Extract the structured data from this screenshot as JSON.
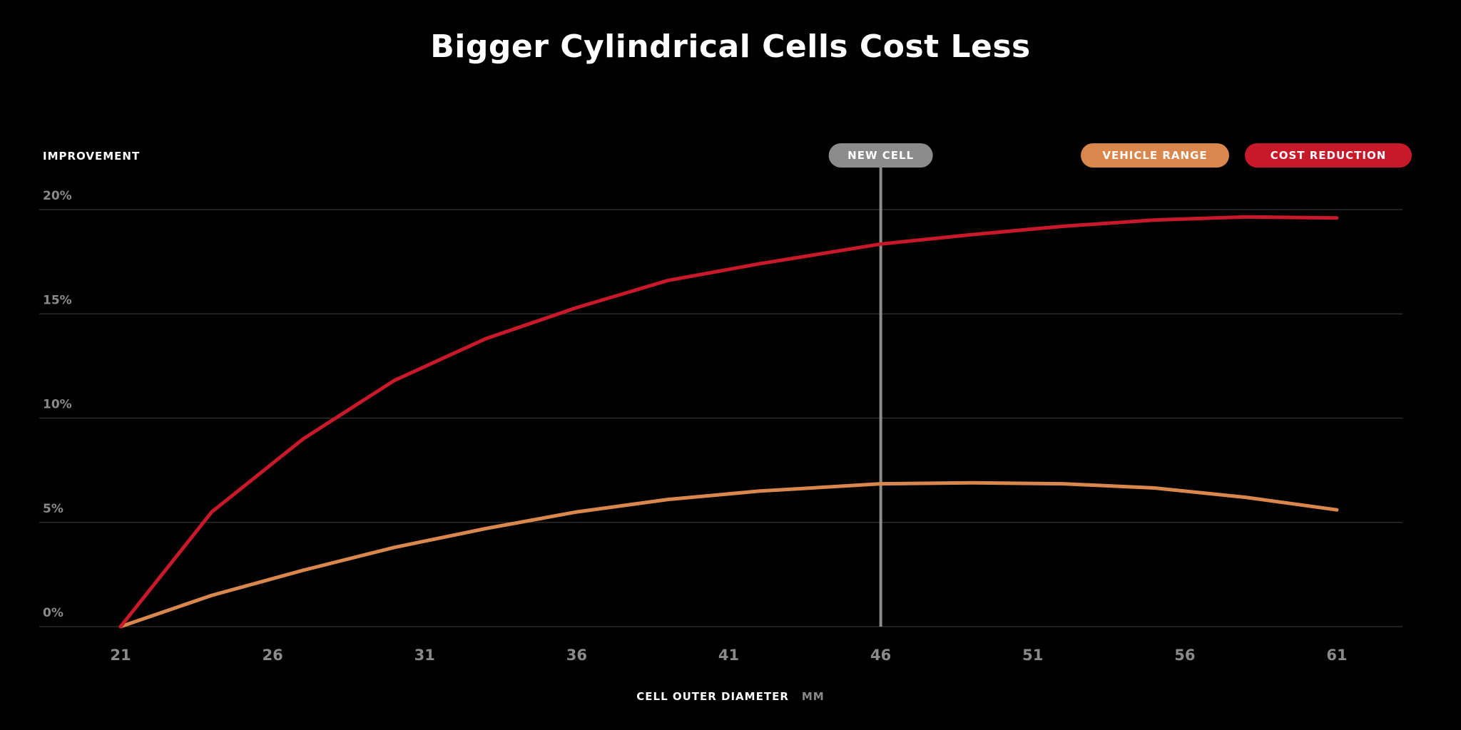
{
  "chart_data": {
    "type": "line",
    "title": "Bigger Cylindrical Cells Cost Less",
    "ylabel": "IMPROVEMENT",
    "xlabel": "CELL OUTER DIAMETER",
    "xunit": "MM",
    "x_ticks": [
      "21",
      "26",
      "31",
      "36",
      "41",
      "46",
      "51",
      "56",
      "61"
    ],
    "xlim": [
      21,
      61
    ],
    "y_ticks": [
      "0%",
      "5%",
      "10%",
      "15%",
      "20%"
    ],
    "y_tick_values": [
      0,
      5,
      10,
      15,
      20
    ],
    "ylim": [
      0,
      20
    ],
    "grid": true,
    "legend_position": "top-right",
    "marker": {
      "label": "NEW CELL",
      "x": 46,
      "color": "#8c8c8c"
    },
    "series": [
      {
        "name": "VEHICLE RANGE",
        "color": "#d9874c",
        "x": [
          21,
          24,
          27,
          30,
          33,
          36,
          39,
          42,
          46,
          49,
          52,
          55,
          58,
          61
        ],
        "values": [
          0,
          1.5,
          2.7,
          3.8,
          4.7,
          5.5,
          6.1,
          6.5,
          6.85,
          6.9,
          6.85,
          6.65,
          6.2,
          5.6
        ]
      },
      {
        "name": "COST REDUCTION",
        "color": "#c8192a",
        "x": [
          21,
          24,
          27,
          30,
          33,
          36,
          39,
          42,
          46,
          49,
          52,
          55,
          58,
          61
        ],
        "values": [
          0,
          5.5,
          9.0,
          11.8,
          13.8,
          15.3,
          16.6,
          17.4,
          18.35,
          18.8,
          19.2,
          19.5,
          19.65,
          19.6
        ]
      }
    ]
  }
}
